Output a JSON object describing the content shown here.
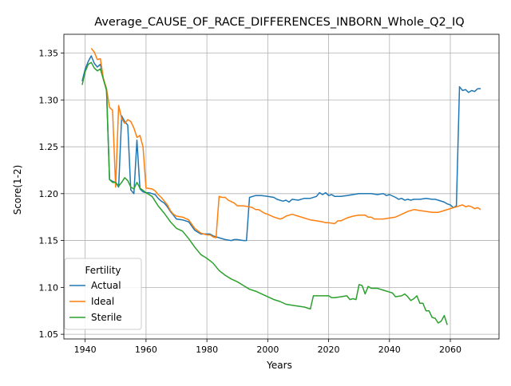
{
  "chart_data": {
    "type": "line",
    "title": "Average_CAUSE_OF_RACE_DIFFERENCES_INBORN_Whole_Q2_IQ",
    "xlabel": "Years",
    "ylabel": "Score(1-2)",
    "xlim": [
      1933,
      2076
    ],
    "ylim": [
      1.045,
      1.37
    ],
    "xticks": [
      1940,
      1960,
      1980,
      2000,
      2020,
      2040,
      2060
    ],
    "yticks": [
      1.05,
      1.1,
      1.15,
      1.2,
      1.25,
      1.3,
      1.35
    ],
    "grid": true,
    "legend": {
      "title": "Fertility",
      "placement": "lower left"
    },
    "series": [
      {
        "name": "Actual",
        "color": "#1f77b4",
        "points": [
          [
            1939,
            1.32
          ],
          [
            1940,
            1.333
          ],
          [
            1941,
            1.341
          ],
          [
            1942,
            1.347
          ],
          [
            1943,
            1.339
          ],
          [
            1944,
            1.335
          ],
          [
            1945,
            1.338
          ],
          [
            1946,
            1.322
          ],
          [
            1947,
            1.312
          ],
          [
            1948,
            1.215
          ],
          [
            1949,
            1.213
          ],
          [
            1950,
            1.212
          ],
          [
            1951,
            1.207
          ],
          [
            1952,
            1.283
          ],
          [
            1953,
            1.277
          ],
          [
            1954,
            1.273
          ],
          [
            1955,
            1.204
          ],
          [
            1956,
            1.2
          ],
          [
            1957,
            1.257
          ],
          [
            1958,
            1.205
          ],
          [
            1959,
            1.202
          ],
          [
            1960,
            1.201
          ],
          [
            1961,
            1.201
          ],
          [
            1962,
            1.2
          ],
          [
            1963,
            1.199
          ],
          [
            1964,
            1.195
          ],
          [
            1965,
            1.192
          ],
          [
            1966,
            1.19
          ],
          [
            1967,
            1.186
          ],
          [
            1968,
            1.181
          ],
          [
            1969,
            1.177
          ],
          [
            1970,
            1.173
          ],
          [
            1972,
            1.172
          ],
          [
            1974,
            1.17
          ],
          [
            1976,
            1.161
          ],
          [
            1978,
            1.157
          ],
          [
            1980,
            1.157
          ],
          [
            1981,
            1.157
          ],
          [
            1982,
            1.155
          ],
          [
            1984,
            1.153
          ],
          [
            1986,
            1.151
          ],
          [
            1988,
            1.15
          ],
          [
            1989,
            1.151
          ],
          [
            1990,
            1.151
          ],
          [
            1992,
            1.15
          ],
          [
            1993,
            1.15
          ],
          [
            1994,
            1.196
          ],
          [
            1996,
            1.198
          ],
          [
            1998,
            1.198
          ],
          [
            2000,
            1.197
          ],
          [
            2002,
            1.196
          ],
          [
            2003,
            1.194
          ],
          [
            2005,
            1.192
          ],
          [
            2006,
            1.193
          ],
          [
            2007,
            1.191
          ],
          [
            2008,
            1.194
          ],
          [
            2010,
            1.193
          ],
          [
            2012,
            1.195
          ],
          [
            2014,
            1.195
          ],
          [
            2016,
            1.197
          ],
          [
            2017,
            1.201
          ],
          [
            2018,
            1.199
          ],
          [
            2019,
            1.201
          ],
          [
            2020,
            1.198
          ],
          [
            2021,
            1.199
          ],
          [
            2022,
            1.197
          ],
          [
            2024,
            1.197
          ],
          [
            2026,
            1.198
          ],
          [
            2028,
            1.199
          ],
          [
            2030,
            1.2
          ],
          [
            2032,
            1.2
          ],
          [
            2034,
            1.2
          ],
          [
            2036,
            1.199
          ],
          [
            2038,
            1.2
          ],
          [
            2039,
            1.198
          ],
          [
            2040,
            1.199
          ],
          [
            2042,
            1.196
          ],
          [
            2043,
            1.194
          ],
          [
            2044,
            1.195
          ],
          [
            2045,
            1.193
          ],
          [
            2046,
            1.194
          ],
          [
            2047,
            1.193
          ],
          [
            2048,
            1.194
          ],
          [
            2050,
            1.194
          ],
          [
            2052,
            1.195
          ],
          [
            2054,
            1.194
          ],
          [
            2055,
            1.194
          ],
          [
            2056,
            1.193
          ],
          [
            2058,
            1.191
          ],
          [
            2059,
            1.189
          ],
          [
            2060,
            1.188
          ],
          [
            2061,
            1.185
          ],
          [
            2062,
            1.187
          ],
          [
            2063,
            1.314
          ],
          [
            2064,
            1.31
          ],
          [
            2065,
            1.311
          ],
          [
            2066,
            1.308
          ],
          [
            2067,
            1.31
          ],
          [
            2068,
            1.309
          ],
          [
            2069,
            1.312
          ],
          [
            2070,
            1.312
          ]
        ]
      },
      {
        "name": "Ideal",
        "color": "#ff7f0e",
        "points": [
          [
            1942,
            1.355
          ],
          [
            1943,
            1.351
          ],
          [
            1944,
            1.343
          ],
          [
            1945,
            1.344
          ],
          [
            1946,
            1.323
          ],
          [
            1947,
            1.312
          ],
          [
            1948,
            1.292
          ],
          [
            1949,
            1.289
          ],
          [
            1950,
            1.207
          ],
          [
            1951,
            1.294
          ],
          [
            1952,
            1.28
          ],
          [
            1953,
            1.275
          ],
          [
            1954,
            1.279
          ],
          [
            1955,
            1.277
          ],
          [
            1956,
            1.27
          ],
          [
            1957,
            1.26
          ],
          [
            1958,
            1.262
          ],
          [
            1959,
            1.25
          ],
          [
            1960,
            1.206
          ],
          [
            1962,
            1.205
          ],
          [
            1963,
            1.203
          ],
          [
            1964,
            1.199
          ],
          [
            1965,
            1.196
          ],
          [
            1966,
            1.192
          ],
          [
            1967,
            1.188
          ],
          [
            1968,
            1.182
          ],
          [
            1969,
            1.178
          ],
          [
            1970,
            1.176
          ],
          [
            1972,
            1.175
          ],
          [
            1974,
            1.172
          ],
          [
            1976,
            1.163
          ],
          [
            1978,
            1.158
          ],
          [
            1980,
            1.156
          ],
          [
            1981,
            1.156
          ],
          [
            1982,
            1.154
          ],
          [
            1983,
            1.153
          ],
          [
            1984,
            1.197
          ],
          [
            1985,
            1.196
          ],
          [
            1986,
            1.196
          ],
          [
            1987,
            1.193
          ],
          [
            1989,
            1.19
          ],
          [
            1990,
            1.187
          ],
          [
            1992,
            1.187
          ],
          [
            1994,
            1.186
          ],
          [
            1995,
            1.185
          ],
          [
            1996,
            1.183
          ],
          [
            1997,
            1.183
          ],
          [
            1998,
            1.181
          ],
          [
            1999,
            1.179
          ],
          [
            2000,
            1.178
          ],
          [
            2002,
            1.175
          ],
          [
            2004,
            1.173
          ],
          [
            2005,
            1.174
          ],
          [
            2006,
            1.176
          ],
          [
            2007,
            1.177
          ],
          [
            2008,
            1.178
          ],
          [
            2010,
            1.176
          ],
          [
            2011,
            1.175
          ],
          [
            2012,
            1.174
          ],
          [
            2014,
            1.172
          ],
          [
            2016,
            1.171
          ],
          [
            2018,
            1.17
          ],
          [
            2019,
            1.169
          ],
          [
            2020,
            1.169
          ],
          [
            2022,
            1.168
          ],
          [
            2023,
            1.171
          ],
          [
            2024,
            1.171
          ],
          [
            2026,
            1.174
          ],
          [
            2028,
            1.176
          ],
          [
            2030,
            1.177
          ],
          [
            2032,
            1.177
          ],
          [
            2033,
            1.175
          ],
          [
            2034,
            1.175
          ],
          [
            2035,
            1.173
          ],
          [
            2036,
            1.173
          ],
          [
            2038,
            1.173
          ],
          [
            2040,
            1.174
          ],
          [
            2042,
            1.175
          ],
          [
            2044,
            1.178
          ],
          [
            2046,
            1.181
          ],
          [
            2048,
            1.183
          ],
          [
            2050,
            1.182
          ],
          [
            2052,
            1.181
          ],
          [
            2054,
            1.18
          ],
          [
            2056,
            1.18
          ],
          [
            2058,
            1.182
          ],
          [
            2060,
            1.184
          ],
          [
            2062,
            1.186
          ],
          [
            2064,
            1.188
          ],
          [
            2065,
            1.186
          ],
          [
            2066,
            1.187
          ],
          [
            2067,
            1.186
          ],
          [
            2068,
            1.184
          ],
          [
            2069,
            1.185
          ],
          [
            2070,
            1.183
          ]
        ]
      },
      {
        "name": "Sterile",
        "color": "#2ca02c",
        "points": [
          [
            1939,
            1.316
          ],
          [
            1940,
            1.33
          ],
          [
            1941,
            1.338
          ],
          [
            1942,
            1.34
          ],
          [
            1943,
            1.334
          ],
          [
            1944,
            1.331
          ],
          [
            1945,
            1.333
          ],
          [
            1946,
            1.322
          ],
          [
            1947,
            1.31
          ],
          [
            1948,
            1.215
          ],
          [
            1949,
            1.212
          ],
          [
            1950,
            1.212
          ],
          [
            1951,
            1.208
          ],
          [
            1952,
            1.212
          ],
          [
            1953,
            1.217
          ],
          [
            1954,
            1.214
          ],
          [
            1955,
            1.207
          ],
          [
            1956,
            1.205
          ],
          [
            1957,
            1.212
          ],
          [
            1958,
            1.206
          ],
          [
            1960,
            1.201
          ],
          [
            1962,
            1.197
          ],
          [
            1964,
            1.187
          ],
          [
            1966,
            1.179
          ],
          [
            1968,
            1.17
          ],
          [
            1970,
            1.163
          ],
          [
            1972,
            1.16
          ],
          [
            1974,
            1.152
          ],
          [
            1976,
            1.143
          ],
          [
            1978,
            1.135
          ],
          [
            1980,
            1.131
          ],
          [
            1982,
            1.126
          ],
          [
            1984,
            1.118
          ],
          [
            1986,
            1.113
          ],
          [
            1988,
            1.109
          ],
          [
            1990,
            1.106
          ],
          [
            1992,
            1.102
          ],
          [
            1994,
            1.098
          ],
          [
            1996,
            1.096
          ],
          [
            1998,
            1.093
          ],
          [
            2000,
            1.09
          ],
          [
            2002,
            1.087
          ],
          [
            2004,
            1.085
          ],
          [
            2006,
            1.082
          ],
          [
            2008,
            1.081
          ],
          [
            2010,
            1.08
          ],
          [
            2012,
            1.079
          ],
          [
            2014,
            1.077
          ],
          [
            2015,
            1.091
          ],
          [
            2018,
            1.091
          ],
          [
            2020,
            1.091
          ],
          [
            2021,
            1.089
          ],
          [
            2022,
            1.089
          ],
          [
            2024,
            1.09
          ],
          [
            2026,
            1.091
          ],
          [
            2027,
            1.087
          ],
          [
            2028,
            1.088
          ],
          [
            2029,
            1.087
          ],
          [
            2030,
            1.103
          ],
          [
            2031,
            1.102
          ],
          [
            2032,
            1.093
          ],
          [
            2033,
            1.101
          ],
          [
            2034,
            1.099
          ],
          [
            2036,
            1.099
          ],
          [
            2037,
            1.098
          ],
          [
            2038,
            1.097
          ],
          [
            2040,
            1.095
          ],
          [
            2041,
            1.094
          ],
          [
            2042,
            1.09
          ],
          [
            2044,
            1.091
          ],
          [
            2045,
            1.093
          ],
          [
            2046,
            1.09
          ],
          [
            2047,
            1.086
          ],
          [
            2048,
            1.088
          ],
          [
            2049,
            1.091
          ],
          [
            2050,
            1.083
          ],
          [
            2051,
            1.083
          ],
          [
            2052,
            1.075
          ],
          [
            2053,
            1.075
          ],
          [
            2054,
            1.068
          ],
          [
            2055,
            1.067
          ],
          [
            2056,
            1.062
          ],
          [
            2057,
            1.064
          ],
          [
            2058,
            1.07
          ],
          [
            2059,
            1.06
          ]
        ]
      }
    ]
  }
}
